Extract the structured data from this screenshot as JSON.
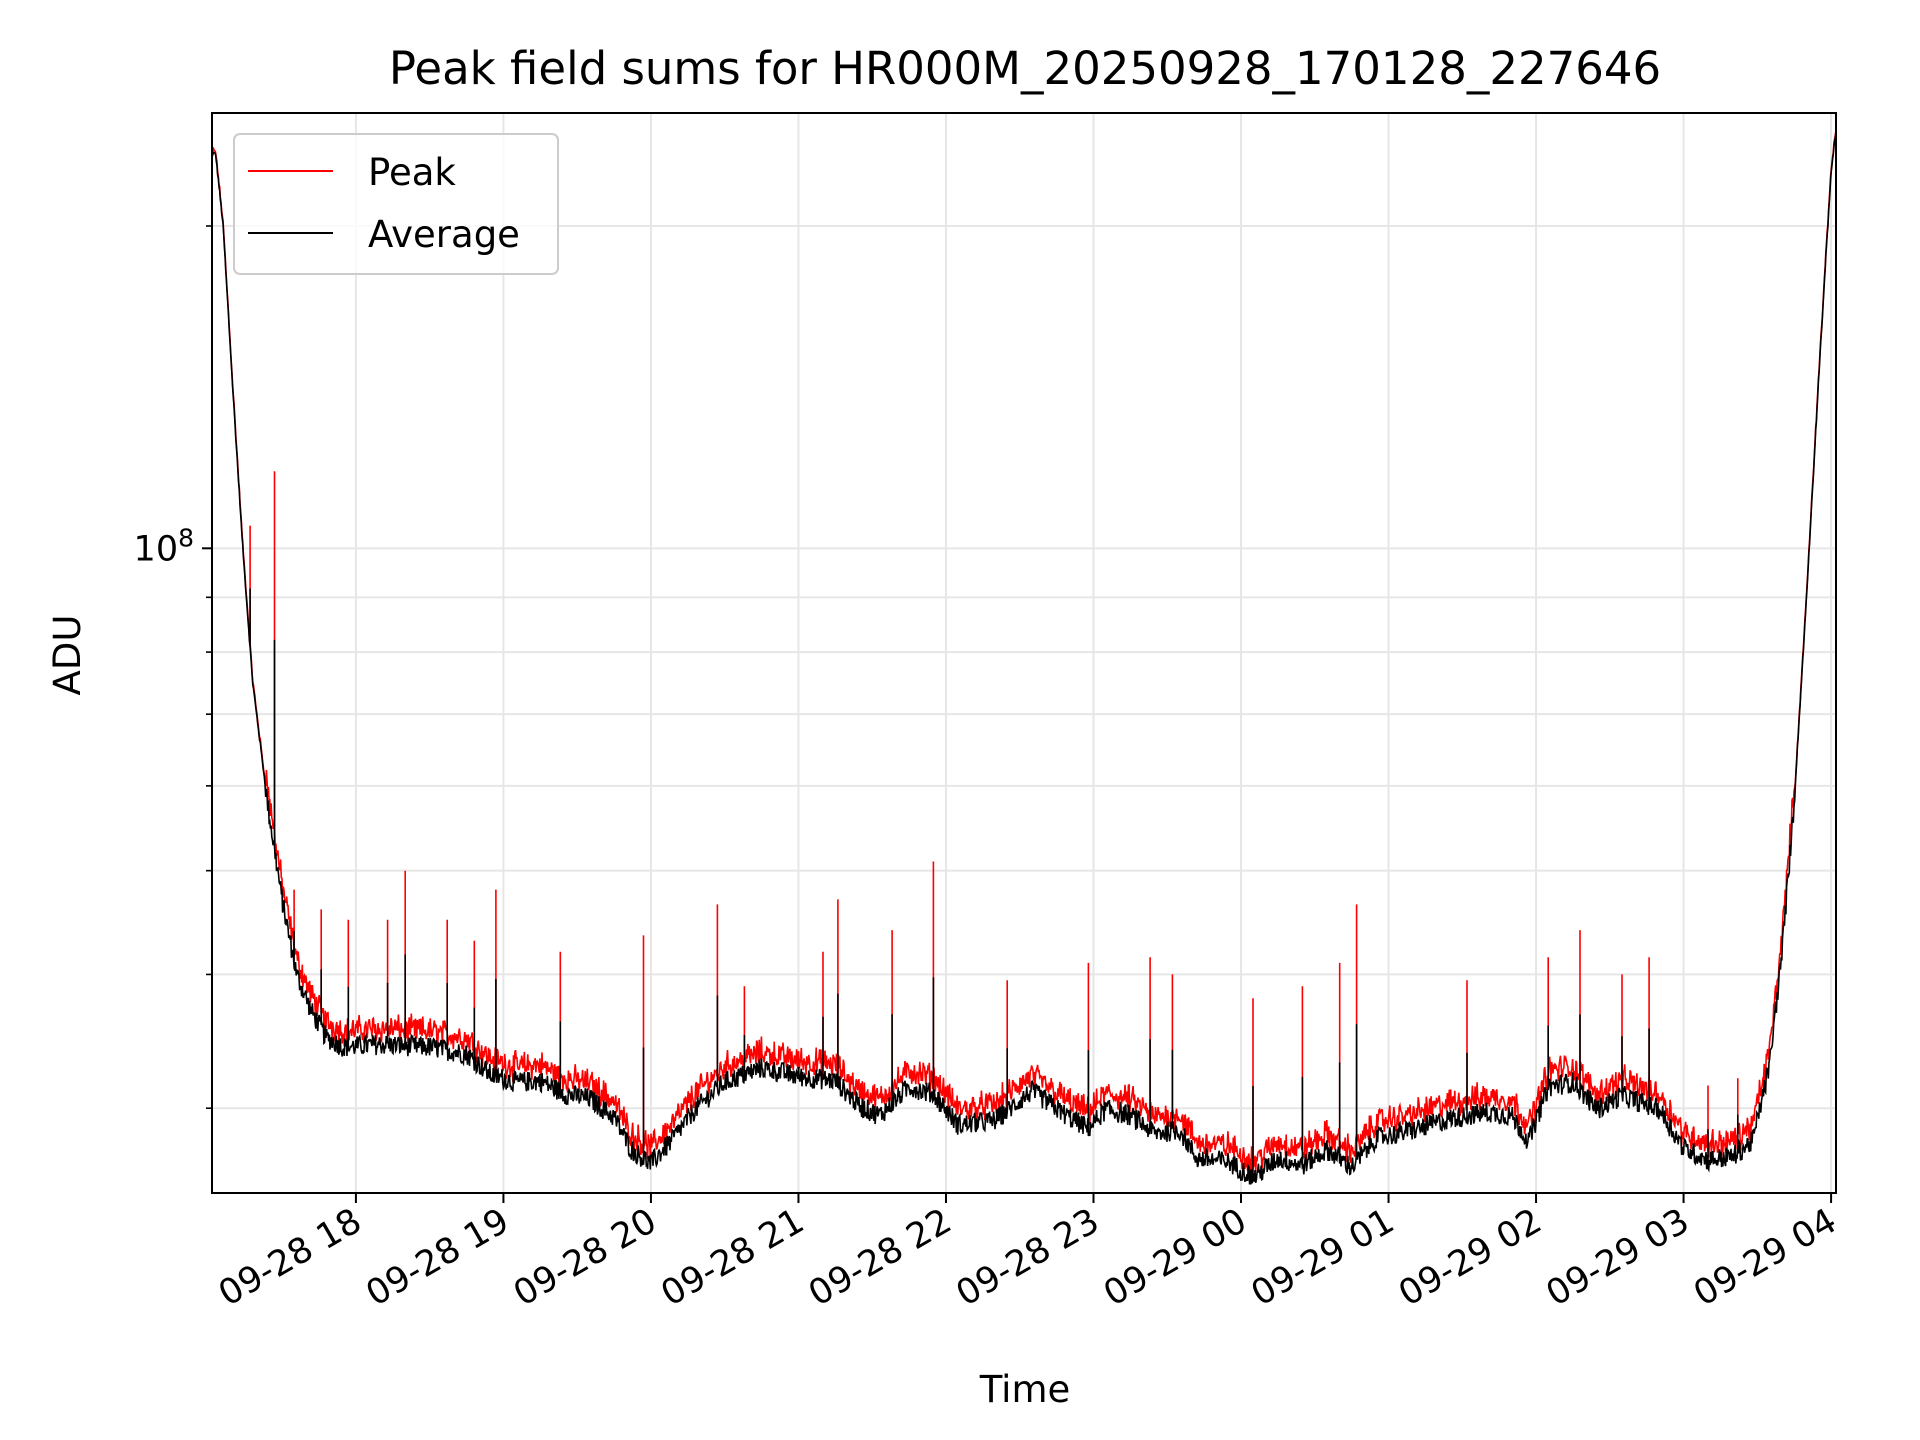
{
  "chart_data": {
    "type": "line",
    "title": "Peak field sums for HR000M_20250928_170128_227646",
    "xlabel": "Time",
    "ylabel": "ADU",
    "y_scale": "log",
    "ylim": [
      25000000,
      255000000
    ],
    "y_major_ticks": [
      {
        "value": 100000000,
        "label_base": "10",
        "label_exp": "8"
      }
    ],
    "y_minor_ticks": [
      30000000,
      40000000,
      50000000,
      60000000,
      70000000,
      80000000,
      90000000,
      200000000
    ],
    "xlim": [
      "2025-09-28T17:01:28",
      "2025-09-29T04:02:00"
    ],
    "x_ticks": [
      {
        "t": "2025-09-28T18:00",
        "label": "09-28 18"
      },
      {
        "t": "2025-09-28T19:00",
        "label": "09-28 19"
      },
      {
        "t": "2025-09-28T20:00",
        "label": "09-28 20"
      },
      {
        "t": "2025-09-28T21:00",
        "label": "09-28 21"
      },
      {
        "t": "2025-09-28T22:00",
        "label": "09-28 22"
      },
      {
        "t": "2025-09-28T23:00",
        "label": "09-28 23"
      },
      {
        "t": "2025-09-29T00:00",
        "label": "09-29 00"
      },
      {
        "t": "2025-09-29T01:00",
        "label": "09-29 01"
      },
      {
        "t": "2025-09-29T02:00",
        "label": "09-29 02"
      },
      {
        "t": "2025-09-29T03:00",
        "label": "09-29 03"
      },
      {
        "t": "2025-09-29T04:00",
        "label": "09-29 04"
      }
    ],
    "grid": true,
    "legend_position": "upper-left",
    "series": [
      {
        "name": "Peak",
        "color": "#ff0000"
      },
      {
        "name": "Average",
        "color": "#000000"
      }
    ],
    "average_profile": [
      [
        "2025-09-28T17:01",
        235000000
      ],
      [
        "2025-09-28T17:03",
        233000000
      ],
      [
        "2025-09-28T17:06",
        200000000
      ],
      [
        "2025-09-28T17:10",
        140000000
      ],
      [
        "2025-09-28T17:14",
        100000000
      ],
      [
        "2025-09-28T17:18",
        75000000
      ],
      [
        "2025-09-28T17:24",
        58000000
      ],
      [
        "2025-09-28T17:30",
        47000000
      ],
      [
        "2025-09-28T17:36",
        40000000
      ],
      [
        "2025-09-28T17:42",
        37000000
      ],
      [
        "2025-09-28T17:48",
        35000000
      ],
      [
        "2025-09-28T17:55",
        34300000
      ],
      [
        "2025-09-28T18:10",
        34500000
      ],
      [
        "2025-09-28T18:30",
        34300000
      ],
      [
        "2025-09-28T18:45",
        33800000
      ],
      [
        "2025-09-28T18:55",
        32300000
      ],
      [
        "2025-09-28T19:05",
        31800000
      ],
      [
        "2025-09-28T19:15",
        31900000
      ],
      [
        "2025-09-28T19:25",
        31000000
      ],
      [
        "2025-09-28T19:35",
        30700000
      ],
      [
        "2025-09-28T19:45",
        29500000
      ],
      [
        "2025-09-28T19:52",
        27500000
      ],
      [
        "2025-09-28T20:00",
        26700000
      ],
      [
        "2025-09-28T20:08",
        28000000
      ],
      [
        "2025-09-28T20:18",
        30000000
      ],
      [
        "2025-09-28T20:30",
        31800000
      ],
      [
        "2025-09-28T20:45",
        32800000
      ],
      [
        "2025-09-28T21:00",
        32200000
      ],
      [
        "2025-09-28T21:15",
        31900000
      ],
      [
        "2025-09-28T21:25",
        30200000
      ],
      [
        "2025-09-28T21:33",
        29600000
      ],
      [
        "2025-09-28T21:45",
        31500000
      ],
      [
        "2025-09-28T21:55",
        31000000
      ],
      [
        "2025-09-28T22:05",
        29000000
      ],
      [
        "2025-09-28T22:20",
        29300000
      ],
      [
        "2025-09-28T22:35",
        31200000
      ],
      [
        "2025-09-28T22:50",
        29500000
      ],
      [
        "2025-09-28T22:58",
        28800000
      ],
      [
        "2025-09-28T23:05",
        30000000
      ],
      [
        "2025-09-28T23:15",
        29600000
      ],
      [
        "2025-09-28T23:25",
        28500000
      ],
      [
        "2025-09-28T23:35",
        28700000
      ],
      [
        "2025-09-28T23:42",
        27000000
      ],
      [
        "2025-09-28T23:55",
        26800000
      ],
      [
        "2025-09-29T00:05",
        25900000
      ],
      [
        "2025-09-29T00:15",
        27000000
      ],
      [
        "2025-09-29T00:25",
        26600000
      ],
      [
        "2025-09-29T00:35",
        27500000
      ],
      [
        "2025-09-29T00:45",
        26500000
      ],
      [
        "2025-09-29T00:55",
        28200000
      ],
      [
        "2025-09-29T01:10",
        28700000
      ],
      [
        "2025-09-29T01:25",
        29400000
      ],
      [
        "2025-09-29T01:40",
        29800000
      ],
      [
        "2025-09-29T01:50",
        29600000
      ],
      [
        "2025-09-29T01:57",
        28000000
      ],
      [
        "2025-09-29T02:05",
        31500000
      ],
      [
        "2025-09-29T02:15",
        31800000
      ],
      [
        "2025-09-29T02:25",
        30000000
      ],
      [
        "2025-09-29T02:35",
        30900000
      ],
      [
        "2025-09-29T02:50",
        30000000
      ],
      [
        "2025-09-29T03:00",
        27600000
      ],
      [
        "2025-09-29T03:10",
        26900000
      ],
      [
        "2025-09-29T03:20",
        27100000
      ],
      [
        "2025-09-29T03:28",
        28000000
      ],
      [
        "2025-09-29T03:35",
        33000000
      ],
      [
        "2025-09-29T03:40",
        42000000
      ],
      [
        "2025-09-29T03:45",
        58000000
      ],
      [
        "2025-09-29T03:50",
        90000000
      ],
      [
        "2025-09-29T03:55",
        145000000
      ],
      [
        "2025-09-29T04:00",
        225000000
      ],
      [
        "2025-09-29T04:02",
        245000000
      ]
    ],
    "peak_spikes": [
      [
        "2025-09-28T17:17",
        105000000
      ],
      [
        "2025-09-28T17:27",
        118000000
      ],
      [
        "2025-09-28T17:35",
        48000000
      ],
      [
        "2025-09-28T17:46",
        46000000
      ],
      [
        "2025-09-28T17:57",
        45000000
      ],
      [
        "2025-09-28T18:13",
        45000000
      ],
      [
        "2025-09-28T18:20",
        50000000
      ],
      [
        "2025-09-28T18:37",
        45000000
      ],
      [
        "2025-09-28T18:48",
        43000000
      ],
      [
        "2025-09-28T18:57",
        48000000
      ],
      [
        "2025-09-28T19:23",
        42000000
      ],
      [
        "2025-09-28T19:57",
        43500000
      ],
      [
        "2025-09-28T20:27",
        46500000
      ],
      [
        "2025-09-28T20:38",
        39000000
      ],
      [
        "2025-09-28T21:10",
        42000000
      ],
      [
        "2025-09-28T21:16",
        47000000
      ],
      [
        "2025-09-28T21:38",
        44000000
      ],
      [
        "2025-09-28T21:55",
        51000000
      ],
      [
        "2025-09-28T22:25",
        39500000
      ],
      [
        "2025-09-28T22:58",
        41000000
      ],
      [
        "2025-09-28T23:23",
        41500000
      ],
      [
        "2025-09-28T23:32",
        40000000
      ],
      [
        "2025-09-29T00:05",
        38000000
      ],
      [
        "2025-09-29T00:25",
        39000000
      ],
      [
        "2025-09-29T00:40",
        41000000
      ],
      [
        "2025-09-29T00:47",
        46500000
      ],
      [
        "2025-09-29T01:32",
        39500000
      ],
      [
        "2025-09-29T02:05",
        41500000
      ],
      [
        "2025-09-29T02:18",
        44000000
      ],
      [
        "2025-09-29T02:35",
        40000000
      ],
      [
        "2025-09-29T02:46",
        41500000
      ],
      [
        "2025-09-29T03:10",
        31500000
      ],
      [
        "2025-09-29T03:22",
        32000000
      ]
    ]
  }
}
